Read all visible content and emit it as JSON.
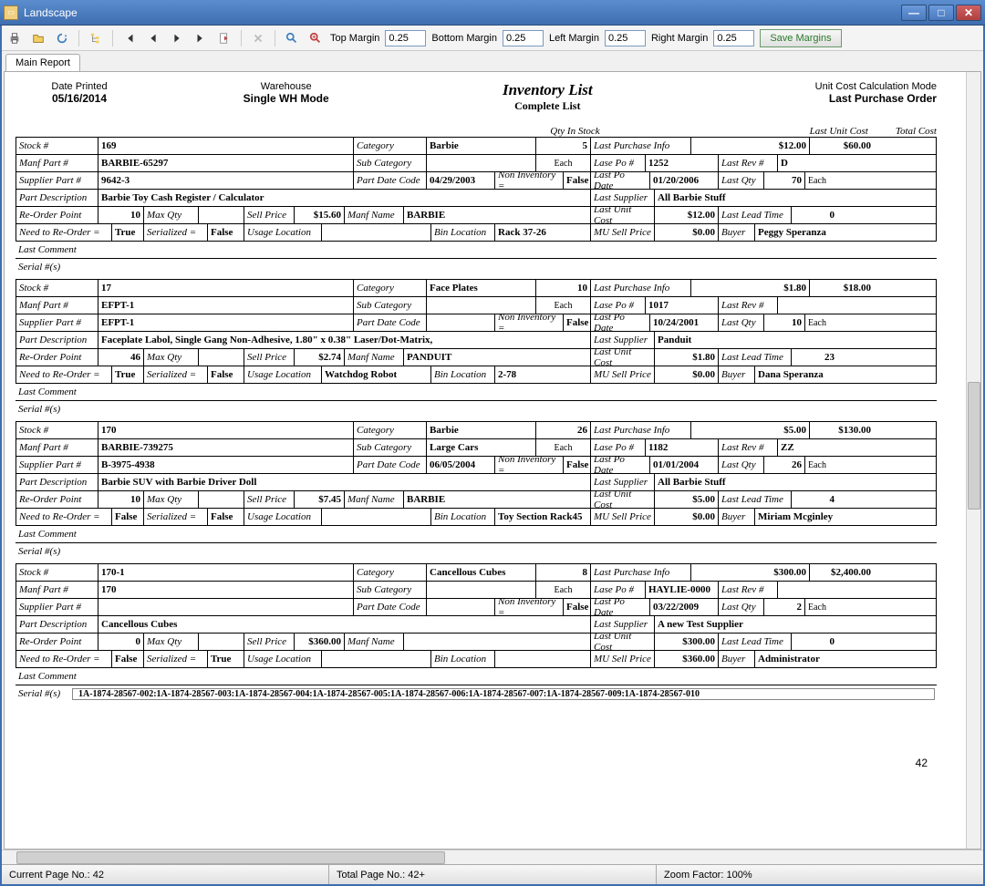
{
  "window": {
    "title": "Landscape"
  },
  "toolbar": {
    "topMarginLabel": "Top Margin",
    "topMargin": "0.25",
    "bottomMarginLabel": "Bottom Margin",
    "bottomMargin": "0.25",
    "leftMarginLabel": "Left Margin",
    "leftMargin": "0.25",
    "rightMarginLabel": "Right Margin",
    "rightMargin": "0.25",
    "saveMargins": "Save Margins"
  },
  "tab": "Main Report",
  "header": {
    "datePrintedLabel": "Date Printed",
    "datePrinted": "05/16/2014",
    "warehouseLabel": "Warehouse",
    "warehouse": "Single WH Mode",
    "title": "Inventory List",
    "subtitle": "Complete List",
    "modeLabel": "Unit Cost Calculation Mode",
    "mode": "Last Purchase Order",
    "qtyInStock": "Qty In Stock",
    "lastUnitCost": "Last Unit Cost",
    "totalCost": "Total Cost"
  },
  "labels": {
    "stockNum": "Stock #",
    "category": "Category",
    "manfPart": "Manf Part #",
    "subCategory": "Sub Category",
    "supplierPart": "Supplier Part #",
    "partDateCode": "Part Date Code",
    "nonInventory": "Non Inventory =",
    "partDesc": "Part Description",
    "reOrderPoint": "Re-Order Point",
    "maxQty": "Max Qty",
    "sellPrice": "Sell Price",
    "manfName": "Manf Name",
    "needReorder": "Need to Re-Order =",
    "serialized": "Serialized =",
    "usageLocation": "Usage Location",
    "binLocation": "Bin Location",
    "lastComment": "Last Comment",
    "serialNums": "Serial #(s)",
    "lastPurchaseInfo": "Last Purchase Info",
    "lasePo": "Lase Po #",
    "lastRev": "Last Rev #",
    "lastPoDate": "Last Po Date",
    "lastQty": "Last Qty",
    "lastSupplier": "Last Supplier",
    "lastUnitCost": "Last Unit Cost",
    "lastLeadTime": "Last Lead Time",
    "muSellPrice": "MU Sell Price",
    "buyer": "Buyer",
    "each": "Each"
  },
  "records": [
    {
      "stockNum": "169",
      "category": "Barbie",
      "qty": "5",
      "lpiCost": "$12.00",
      "lpiTotal": "$60.00",
      "manfPart": "BARBIE-65297",
      "subCategory": "",
      "each": "Each",
      "lasePo": "1252",
      "lastRev": "D",
      "supplierPart": "9642-3",
      "partDateCode": "04/29/2003",
      "nonInv": "False",
      "lastPoDate": "01/20/2006",
      "lastQty": "70",
      "lastQtyUnit": "Each",
      "partDesc": "Barbie Toy Cash Register / Calculator",
      "lastSupplier": "All Barbie Stuff",
      "reOrder": "10",
      "maxQty": "",
      "sellPrice": "$15.60",
      "manfName": "BARBIE",
      "lastUnitCost": "$12.00",
      "lastLeadTime": "0",
      "needReorder": "True",
      "serialized": "False",
      "usageLoc": "",
      "binLoc": "Rack 37-26",
      "muSell": "$0.00",
      "buyer": "Peggy Speranza",
      "lastComment": "",
      "serials": ""
    },
    {
      "stockNum": "17",
      "category": "Face Plates",
      "qty": "10",
      "lpiCost": "$1.80",
      "lpiTotal": "$18.00",
      "manfPart": "EFPT-1",
      "subCategory": "",
      "each": "Each",
      "lasePo": "1017",
      "lastRev": "",
      "supplierPart": "EFPT-1",
      "partDateCode": "",
      "nonInv": "False",
      "lastPoDate": "10/24/2001",
      "lastQty": "10",
      "lastQtyUnit": "Each",
      "partDesc": "Faceplate Labol, Single Gang Non-Adhesive, 1.80\" x 0.38\" Laser/Dot-Matrix,",
      "lastSupplier": "Panduit",
      "reOrder": "46",
      "maxQty": "",
      "sellPrice": "$2.74",
      "manfName": "PANDUIT",
      "lastUnitCost": "$1.80",
      "lastLeadTime": "23",
      "needReorder": "True",
      "serialized": "False",
      "usageLoc": "Watchdog Robot",
      "binLoc": "2-78",
      "muSell": "$0.00",
      "buyer": "Dana Speranza",
      "lastComment": "",
      "serials": ""
    },
    {
      "stockNum": "170",
      "category": "Barbie",
      "qty": "26",
      "lpiCost": "$5.00",
      "lpiTotal": "$130.00",
      "manfPart": "BARBIE-739275",
      "subCategory": "Large Cars",
      "each": "Each",
      "lasePo": "1182",
      "lastRev": "ZZ",
      "supplierPart": "B-3975-4938",
      "partDateCode": "06/05/2004",
      "nonInv": "False",
      "lastPoDate": "01/01/2004",
      "lastQty": "26",
      "lastQtyUnit": "Each",
      "partDesc": "Barbie SUV with Barbie Driver Doll",
      "lastSupplier": "All Barbie Stuff",
      "reOrder": "10",
      "maxQty": "",
      "sellPrice": "$7.45",
      "manfName": "BARBIE",
      "lastUnitCost": "$5.00",
      "lastLeadTime": "4",
      "needReorder": "False",
      "serialized": "False",
      "usageLoc": "",
      "binLoc": "Toy Section Rack45",
      "muSell": "$0.00",
      "buyer": "Miriam Mcginley",
      "lastComment": "",
      "serials": ""
    },
    {
      "stockNum": "170-1",
      "category": "Cancellous Cubes",
      "qty": "8",
      "lpiCost": "$300.00",
      "lpiTotal": "$2,400.00",
      "manfPart": "170",
      "subCategory": "",
      "each": "Each",
      "lasePo": "HAYLIE-0000",
      "lastRev": "",
      "supplierPart": "",
      "partDateCode": "",
      "nonInv": "False",
      "lastPoDate": "03/22/2009",
      "lastQty": "2",
      "lastQtyUnit": "Each",
      "partDesc": "Cancellous Cubes",
      "lastSupplier": "A new Test Supplier",
      "reOrder": "0",
      "maxQty": "",
      "sellPrice": "$360.00",
      "manfName": "",
      "lastUnitCost": "$300.00",
      "lastLeadTime": "0",
      "needReorder": "False",
      "serialized": "True",
      "usageLoc": "",
      "binLoc": "",
      "muSell": "$360.00",
      "buyer": "Administrator",
      "lastComment": "",
      "serials": "1A-1874-28567-002:1A-1874-28567-003:1A-1874-28567-004:1A-1874-28567-005:1A-1874-28567-006:1A-1874-28567-007:1A-1874-28567-009:1A-1874-28567-010"
    }
  ],
  "pageNum": "42",
  "status": {
    "currentPage": "Current Page No.: 42",
    "totalPage": "Total Page No.: 42+",
    "zoom": "Zoom Factor: 100%"
  }
}
